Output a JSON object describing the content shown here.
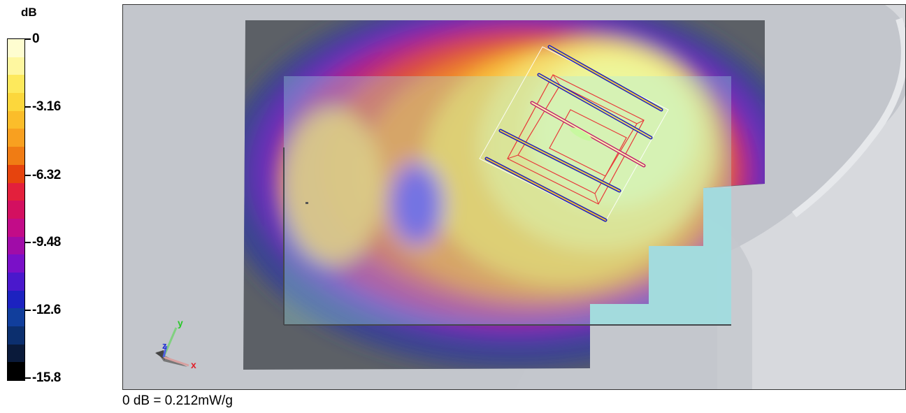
{
  "legend": {
    "unit": "dB",
    "ticks": [
      "0",
      "-3.16",
      "-6.32",
      "-9.48",
      "-12.6",
      "-15.8"
    ],
    "colors": [
      "#fefdd0",
      "#fef7a0",
      "#fde95c",
      "#fcd73c",
      "#fbbd2a",
      "#f8a020",
      "#f07c14",
      "#e6440e",
      "#e3203c",
      "#d31060",
      "#c20c88",
      "#a00ca8",
      "#7a10c8",
      "#4a18cc",
      "#1c22c0",
      "#113e9c",
      "#0c2f6e",
      "#0a1a3a",
      "#000000"
    ]
  },
  "viewport": {
    "axes": {
      "x": "x",
      "y": "y",
      "z": "z"
    },
    "colors": {
      "x": "#e0202a",
      "y": "#28c828",
      "z": "#2030d0"
    }
  },
  "footnote": "0 dB = 0.212mW/g"
}
